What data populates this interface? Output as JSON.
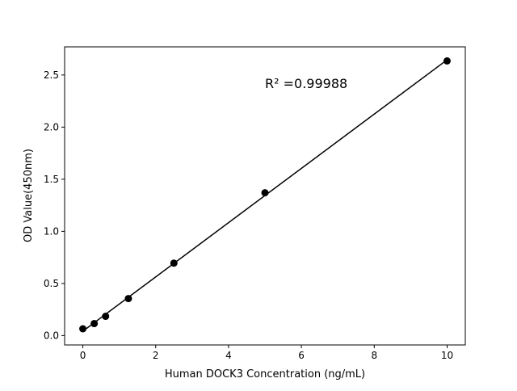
{
  "chart_data": {
    "type": "scatter",
    "title": "",
    "xlabel": "Human DOCK3 Concentration (ng/mL)",
    "ylabel": "OD Value(450nm)",
    "xlim": [
      -0.5,
      10.5
    ],
    "ylim": [
      -0.09,
      2.77
    ],
    "xticks": [
      0,
      2,
      4,
      6,
      8,
      10
    ],
    "yticks": [
      "0.0",
      "0.5",
      "1.0",
      "1.5",
      "2.0",
      "2.5"
    ],
    "grid": false,
    "x": [
      0,
      0.3125,
      0.625,
      1.25,
      2.5,
      5,
      10
    ],
    "y": [
      0.065,
      0.115,
      0.185,
      0.355,
      0.695,
      1.37,
      2.635
    ],
    "fit_line": true,
    "annotation": "R² =0.99988",
    "color": "#000000"
  }
}
